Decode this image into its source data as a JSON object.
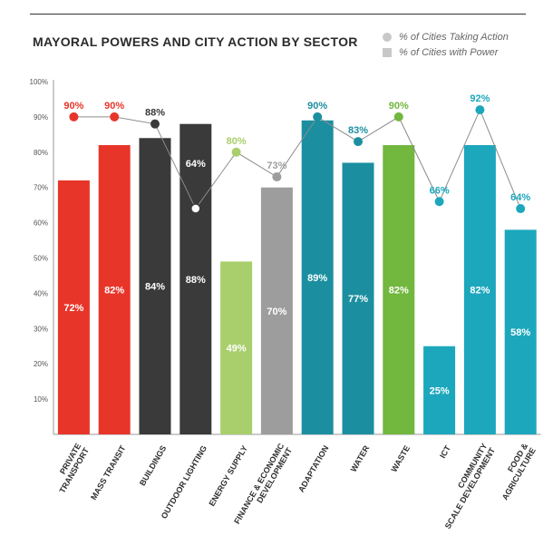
{
  "title": "MAYORAL POWERS AND CITY ACTION BY SECTOR",
  "legend": {
    "action_label": "% of Cities Taking Action",
    "power_label": "% of Cities with Power"
  },
  "colors": {
    "red": "#e8352a",
    "dark": "#3a3a3a",
    "light_green": "#a9cf6c",
    "gray": "#9d9d9d",
    "teal": "#1b8fa0",
    "green": "#72b73e",
    "cyan": "#1ca7bd",
    "line": "#8c8c8c"
  },
  "chart_data": {
    "type": "bar",
    "categories": [
      "PRIVATE TRANSPORT",
      "MASS TRANSIT",
      "BUILDINGS",
      "OUTDOOR LIGHTING",
      "ENERGY SUPPLY",
      "FINANCE & ECONOMIC DEVELOPMENT",
      "ADAPTATION",
      "WATER",
      "WASTE",
      "ICT",
      "COMMUNITY SCALE DEVELOPMENT",
      "FOOD & AGRICULTURE"
    ],
    "category_lines": [
      [
        "PRIVATE",
        "TRANSPORT"
      ],
      [
        "MASS TRANSIT"
      ],
      [
        "BUILDINGS"
      ],
      [
        "OUTDOOR LIGHTING"
      ],
      [
        "ENERGY SUPPLY"
      ],
      [
        "FINANCE & ECONOMIC",
        "DEVELOPMENT"
      ],
      [
        "ADAPTATION"
      ],
      [
        "WATER"
      ],
      [
        "WASTE"
      ],
      [
        "ICT"
      ],
      [
        "COMMUNITY",
        "SCALE DEVELOPMENT"
      ],
      [
        "FOOD &",
        "AGRICULTURE"
      ]
    ],
    "series": [
      {
        "name": "% of Cities with Power",
        "values": [
          72,
          82,
          84,
          88,
          49,
          70,
          89,
          77,
          82,
          25,
          82,
          58
        ]
      },
      {
        "name": "% of Cities Taking Action",
        "values": [
          90,
          90,
          88,
          64,
          80,
          73,
          90,
          83,
          90,
          66,
          92,
          64
        ]
      }
    ],
    "bar_labels": [
      "72%",
      "82%",
      "84%",
      "88%",
      "49%",
      "70%",
      "89%",
      "77%",
      "82%",
      "25%",
      "82%",
      "58%"
    ],
    "point_labels": [
      "90%",
      "90%",
      "88%",
      "64%",
      "80%",
      "73%",
      "90%",
      "83%",
      "90%",
      "66%",
      "92%",
      "64%"
    ],
    "bar_colors": [
      "red",
      "red",
      "dark",
      "dark",
      "light_green",
      "gray",
      "teal",
      "teal",
      "green",
      "cyan",
      "cyan",
      "cyan"
    ],
    "point_styles": [
      "red",
      "red",
      "dark",
      "hollow",
      "light_green",
      "gray",
      "teal",
      "teal",
      "green",
      "cyan",
      "cyan",
      "cyan"
    ],
    "y_ticks": [
      "100%",
      "90%",
      "80%",
      "70%",
      "60%",
      "50%",
      "40%",
      "30%",
      "20%",
      "10%"
    ],
    "y_tick_values": [
      100,
      90,
      80,
      70,
      60,
      50,
      40,
      30,
      20,
      10
    ],
    "ylim": [
      0,
      100
    ],
    "grid": false,
    "legend_position": "top-right"
  }
}
